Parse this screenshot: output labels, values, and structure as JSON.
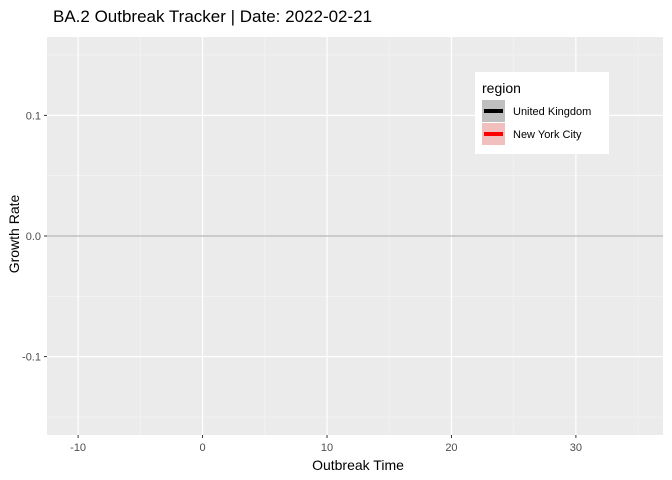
{
  "chart_data": {
    "type": "line",
    "title": "BA.2 Outbreak Tracker | Date: 2022-02-21",
    "xlabel": "Outbreak Time",
    "ylabel": "Growth Rate",
    "xlim": [
      -12.5,
      37.0
    ],
    "ylim": [
      -0.165,
      0.165
    ],
    "x_ticks": [
      {
        "value": -10,
        "label": "-10"
      },
      {
        "value": 0,
        "label": "0"
      },
      {
        "value": 10,
        "label": "10"
      },
      {
        "value": 20,
        "label": "20"
      },
      {
        "value": 30,
        "label": "30"
      }
    ],
    "y_ticks": [
      {
        "value": -0.1,
        "label": "-0.1"
      },
      {
        "value": 0.0,
        "label": "0.0"
      },
      {
        "value": 0.1,
        "label": "0.1"
      }
    ],
    "reference_line": {
      "y": 0.0,
      "color": "#a6a6a6"
    },
    "grid": true,
    "panel_background": "#ebebeb",
    "legend": {
      "title": "region",
      "position": "top-right",
      "entries": [
        {
          "label": "United Kingdom",
          "color": "#000000",
          "background": "#bfbfbf"
        },
        {
          "label": "New York City",
          "color": "#ff0000",
          "background": "#f2bfbf"
        }
      ]
    },
    "series": [
      {
        "name": "United Kingdom",
        "color": "#000000",
        "points": []
      },
      {
        "name": "New York City",
        "color": "#ff0000",
        "points": []
      }
    ]
  }
}
